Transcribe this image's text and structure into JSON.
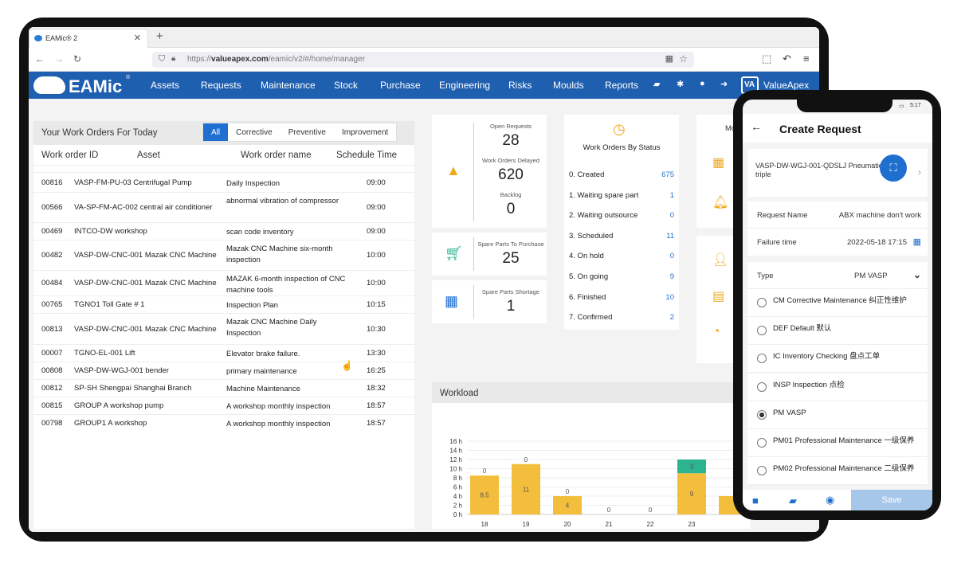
{
  "browser": {
    "tab_title": "EAMic® 2",
    "url_bold": "valueapex.com",
    "url_prefix": "https://",
    "url_rest": "/eamic/v2/#/home/manager"
  },
  "nav": {
    "logo": "EAMic",
    "logo_mark": "®",
    "items": [
      "Assets",
      "Requests",
      "Maintenance",
      "Stock",
      "Purchase",
      "Engineering",
      "Risks",
      "Moulds",
      "Reports"
    ],
    "brand": "ValueApex",
    "brand_short": "VA"
  },
  "work_orders": {
    "title": "Your Work Orders For Today",
    "filters": [
      "All",
      "Corrective",
      "Preventive",
      "Improvement"
    ],
    "columns": [
      "Work order ID",
      "Asset",
      "Work order name",
      "Schedule Time"
    ],
    "rows": [
      {
        "id": "00816",
        "asset": "VASP-FM-PU-03 Centrifugal Pump",
        "name": "Daily Inspection",
        "time": "09:00"
      },
      {
        "id": "00566",
        "asset": "VA-SP-FM-AC-002 central air conditioner",
        "name": "abnormal vibration of compressor",
        "time": "09:00"
      },
      {
        "id": "00469",
        "asset": "INTCO-DW workshop",
        "name": "scan code inventory",
        "time": "09:00"
      },
      {
        "id": "00482",
        "asset": "VASP-DW-CNC-001 Mazak CNC Machine",
        "name": "Mazak CNC Machine six-month inspection",
        "time": "10:00"
      },
      {
        "id": "00484",
        "asset": "VASP-DW-CNC-001 Mazak CNC Machine",
        "name": "MAZAK 6-month inspection of CNC machine tools",
        "time": "10:00"
      },
      {
        "id": "00765",
        "asset": "TGNO1 Toll Gate # 1",
        "name": "Inspection Plan",
        "time": "10:15"
      },
      {
        "id": "00813",
        "asset": "VASP-DW-CNC-001 Mazak CNC Machine",
        "name": "Mazak CNC Machine Daily Inspection",
        "time": "10:30"
      },
      {
        "id": "00007",
        "asset": "TGNO-EL-001 Lift",
        "name": "Elevator brake failure.",
        "time": "13:30"
      },
      {
        "id": "00808",
        "asset": "VASP-DW-WGJ-001 bender",
        "name": "primary maintenance",
        "time": "16:25"
      },
      {
        "id": "00812",
        "asset": "SP-SH Shengpai Shanghai Branch",
        "name": "Machine Maintenance",
        "time": "18:32"
      },
      {
        "id": "00815",
        "asset": "GROUP A workshop pump",
        "name": "A workshop monthly inspection",
        "time": "18:57"
      },
      {
        "id": "00798",
        "asset": "GROUP1 A workshop",
        "name": "A workshop monthly inspection",
        "time": "18:57"
      }
    ]
  },
  "kpi": {
    "open_requests_label": "Open Requests",
    "open_requests": "28",
    "delayed_label": "Work Orders Delayed",
    "delayed": "620",
    "backlog_label": "Backlog",
    "backlog": "0",
    "spare_purchase_label": "Spare Parts To Purchase",
    "spare_purchase": "25",
    "spare_shortage_label": "Spare Parts Shortage",
    "spare_shortage": "1"
  },
  "status": {
    "title": "Work Orders By Status",
    "items": [
      {
        "label": "0. Created",
        "n": "675"
      },
      {
        "label": "1. Waiting spare part",
        "n": "1"
      },
      {
        "label": "2. Waiting outsource",
        "n": "0"
      },
      {
        "label": "3. Scheduled",
        "n": "11"
      },
      {
        "label": "4. On hold",
        "n": "0"
      },
      {
        "label": "5. On going",
        "n": "9"
      },
      {
        "label": "6. Finished",
        "n": "10"
      },
      {
        "label": "7. Confirmed",
        "n": "2"
      }
    ],
    "side_title": "Mo"
  },
  "workload": {
    "title": "Workload"
  },
  "chart_data": {
    "type": "bar",
    "title": "Workload",
    "categories": [
      "18",
      "19",
      "20",
      "21",
      "22",
      "23"
    ],
    "yticks": [
      "0 h",
      "2 h",
      "4 h",
      "6 h",
      "8 h",
      "10 h",
      "12 h",
      "14 h",
      "16 h"
    ],
    "ylim": [
      0,
      16
    ],
    "series": [
      {
        "values": [
          8.5,
          11,
          4,
          0,
          0,
          9
        ],
        "labels": [
          "8.5",
          "11",
          "4",
          "",
          "",
          "9"
        ],
        "color": "#f2be3c"
      },
      {
        "values": [
          0,
          0,
          0,
          0,
          0,
          3
        ],
        "labels": [
          "0",
          "0",
          "0",
          "0",
          "0",
          "3"
        ],
        "color": "#2bb48f"
      }
    ]
  },
  "phone": {
    "time": "5:17",
    "title": "Create Request",
    "asset": "VASP-DW-WGJ-001-QDSLJ Pneumatic triple",
    "request_name_label": "Request Name",
    "request_name": "ABX machine don't work",
    "failure_label": "Failure time",
    "failure": "2022-05-18 17:15",
    "type_label": "Type",
    "type": "PM VASP",
    "options": [
      "CM Corrective Maintenance 纠正性维护",
      "DEF Default 默认",
      "IC Inventory Checking 盘点工单",
      "INSP Inspection 点检",
      "PM VASP",
      "PM01 Professional Maintenance 一级保养",
      "PM02 Professional Maintenance 二级保养"
    ],
    "selected_index": 4,
    "save": "Save"
  }
}
